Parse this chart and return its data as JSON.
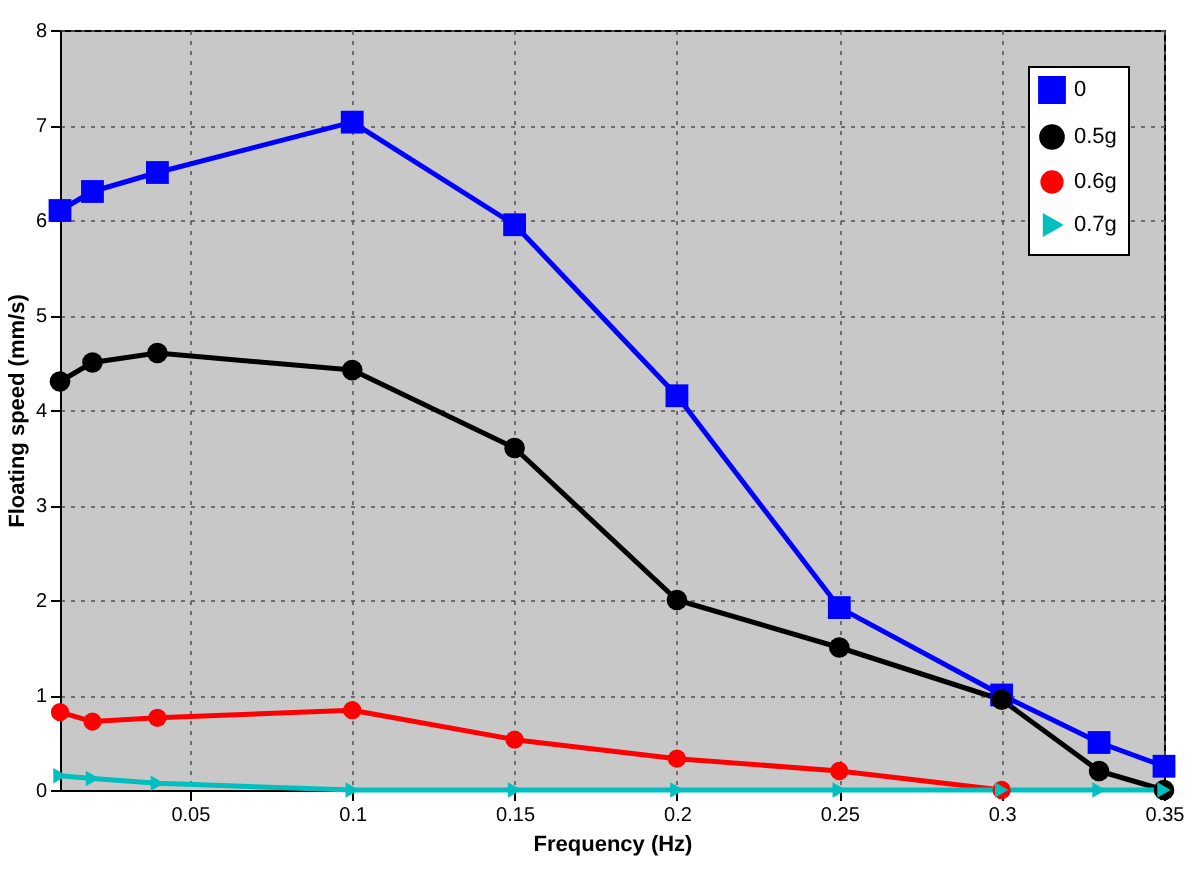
{
  "chart_data": {
    "type": "line",
    "xlabel": "Frequency (Hz)",
    "ylabel": "Floating speed (mm/s)",
    "x": [
      0.01,
      0.02,
      0.04,
      0.1,
      0.15,
      0.2,
      0.25,
      0.3,
      0.33,
      0.35
    ],
    "series": [
      {
        "name": "0",
        "color": "#0000ff",
        "marker": "square",
        "values": [
          6.1,
          6.3,
          6.5,
          7.03,
          5.95,
          4.15,
          1.92,
          1.0,
          0.5,
          0.25
        ]
      },
      {
        "name": "0.5g",
        "color": "#000000",
        "marker": "circle",
        "values": [
          4.3,
          4.5,
          4.6,
          4.42,
          3.6,
          2.0,
          1.5,
          0.95,
          0.2,
          0.0
        ]
      },
      {
        "name": "0.6g",
        "color": "#ff0000",
        "marker": "circle",
        "values": [
          0.82,
          0.72,
          0.76,
          0.84,
          0.53,
          0.33,
          0.2,
          0.0,
          null,
          null
        ]
      },
      {
        "name": "0.7g",
        "color": "#00bfbf",
        "marker": "triangle",
        "values": [
          0.15,
          0.12,
          0.07,
          0.0,
          0.0,
          0.0,
          0.0,
          0.0,
          0.0,
          0.0
        ]
      }
    ],
    "xlim": [
      0.01,
      0.35
    ],
    "xticks": [
      0.05,
      0.1,
      0.15,
      0.2,
      0.25,
      0.3,
      0.35
    ],
    "ylim": [
      0,
      8
    ],
    "yticks": [
      0,
      1,
      2,
      3,
      4,
      5,
      6,
      7,
      8
    ],
    "grid": true,
    "legend": "top right",
    "line_style": "solid"
  }
}
